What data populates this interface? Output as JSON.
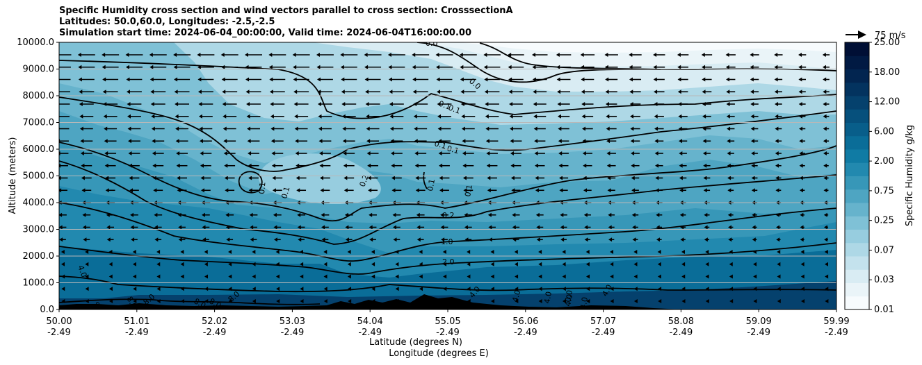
{
  "chart_data": {
    "type": "heatmap",
    "title_lines": [
      "Specific Humidity cross section and wind vectors parallel to cross section: CrosssectionA",
      "Latitudes: 50.0,60.0, Longitudes: -2.5,-2.5",
      "Simulation start time: 2024-06-04_00:00:00, Valid time: 2024-06-04T16:00:00.00"
    ],
    "ylabel": "Altitude (meters)",
    "xlabel_lat": "Latitude (degrees N)",
    "xlabel_lon": "Longitude (degrees E)",
    "ylim": [
      0,
      10000
    ],
    "y_ticks": [
      "0.0",
      "1000.0",
      "2000.0",
      "3000.0",
      "4000.0",
      "5000.0",
      "6000.0",
      "7000.0",
      "8000.0",
      "9000.0",
      "10000.0"
    ],
    "x_ticks": [
      {
        "lat": "50.00",
        "lon": "-2.49"
      },
      {
        "lat": "51.01",
        "lon": "-2.49"
      },
      {
        "lat": "52.02",
        "lon": "-2.49"
      },
      {
        "lat": "53.03",
        "lon": "-2.49"
      },
      {
        "lat": "54.04",
        "lon": "-2.49"
      },
      {
        "lat": "55.05",
        "lon": "-2.49"
      },
      {
        "lat": "56.06",
        "lon": "-2.49"
      },
      {
        "lat": "57.07",
        "lon": "-2.49"
      },
      {
        "lat": "58.08",
        "lon": "-2.49"
      },
      {
        "lat": "59.09",
        "lon": "-2.49"
      },
      {
        "lat": "59.99",
        "lon": "-2.49"
      }
    ],
    "colorbar": {
      "label": "Specific Humidity g/kg",
      "tick_labels": [
        "0.01",
        "0.03",
        "0.07",
        "0.25",
        "0.75",
        "2.00",
        "6.00",
        "12.00",
        "18.00",
        "25.00"
      ],
      "colors": [
        "#f7fbfd",
        "#eaf4f8",
        "#d9ecf3",
        "#c4e2ed",
        "#aed8e6",
        "#97cddf",
        "#7fc1d6",
        "#66b3cc",
        "#4ea5c2",
        "#3797b8",
        "#2289af",
        "#107ba4",
        "#0a6d98",
        "#085e8a",
        "#06507c",
        "#05416d",
        "#03335f",
        "#022550",
        "#011a43",
        "#000f35"
      ]
    },
    "quiver_key": "75 m/s",
    "contour_levels": [
      {
        "label": "0.0",
        "altitude": 9600
      },
      {
        "label": "0.1",
        "altitude": 7300
      },
      {
        "label": "0.1",
        "altitude": 6100
      },
      {
        "label": "0.2",
        "altitude": 3400
      },
      {
        "label": "1.0",
        "altitude": 2500
      },
      {
        "label": "2.0",
        "altitude": 1800
      },
      {
        "label": "4.0",
        "altitude": 400
      },
      {
        "label": "8.0",
        "altitude": 150
      }
    ],
    "contour_label_texts": [
      "0.0",
      "0.0",
      "0.1",
      "0.1",
      "0.1",
      "0.1",
      "0.2",
      "0.2",
      "1.0",
      "2.0",
      "0.1",
      "0.1",
      "0.1",
      "0.1",
      "4.0",
      "4.0",
      "4.0",
      "4.0",
      "4.0",
      "4.0",
      "4.0",
      "8.0",
      "8.0",
      "8.0",
      "8.0",
      "8.0",
      "8.0",
      "0.0"
    ],
    "wind_vectors": {
      "direction": "westward (toward lower latitude)",
      "max_speed_label": "75 m/s"
    }
  }
}
